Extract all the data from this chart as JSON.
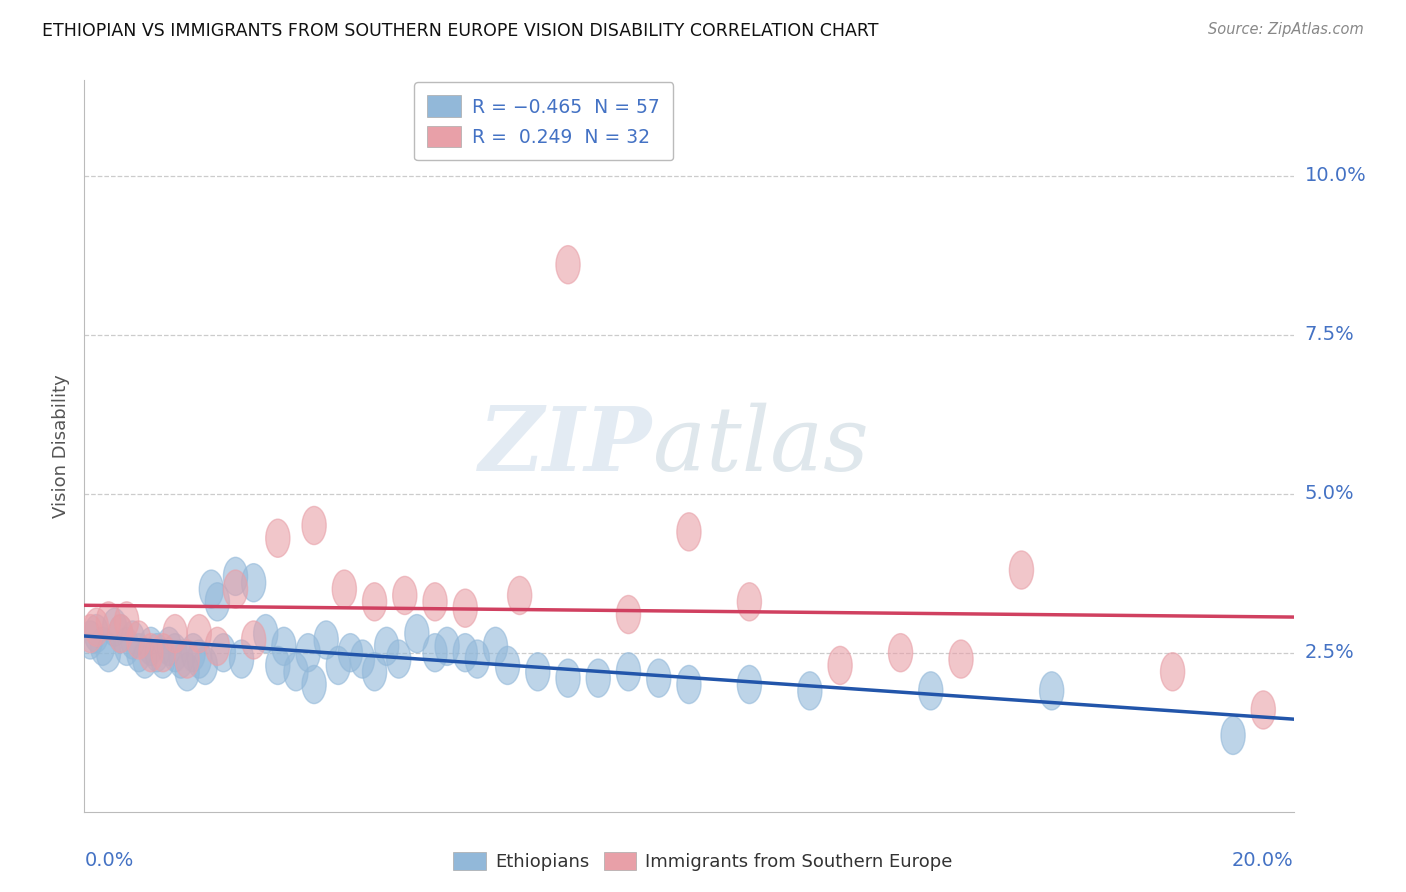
{
  "title": "ETHIOPIAN VS IMMIGRANTS FROM SOUTHERN EUROPE VISION DISABILITY CORRELATION CHART",
  "source": "Source: ZipAtlas.com",
  "ylabel": "Vision Disability",
  "ytick_vals": [
    0.025,
    0.05,
    0.075,
    0.1
  ],
  "ytick_labels": [
    "2.5%",
    "5.0%",
    "7.5%",
    "10.0%"
  ],
  "xlim": [
    0.0,
    0.2
  ],
  "ylim": [
    0.0,
    0.115
  ],
  "blue_color": "#92b8d9",
  "pink_color": "#e8a0a8",
  "blue_line_color": "#2255aa",
  "pink_line_color": "#d04060",
  "tick_color": "#4472c4",
  "ethiopians_x": [
    0.001,
    0.002,
    0.003,
    0.004,
    0.005,
    0.006,
    0.007,
    0.008,
    0.009,
    0.01,
    0.011,
    0.012,
    0.013,
    0.014,
    0.015,
    0.016,
    0.017,
    0.018,
    0.019,
    0.02,
    0.021,
    0.022,
    0.023,
    0.025,
    0.026,
    0.028,
    0.03,
    0.032,
    0.033,
    0.035,
    0.037,
    0.038,
    0.04,
    0.042,
    0.044,
    0.046,
    0.048,
    0.05,
    0.052,
    0.055,
    0.058,
    0.06,
    0.063,
    0.065,
    0.068,
    0.07,
    0.075,
    0.08,
    0.085,
    0.09,
    0.095,
    0.1,
    0.11,
    0.12,
    0.14,
    0.16,
    0.19
  ],
  "ethiopians_y": [
    0.027,
    0.028,
    0.026,
    0.025,
    0.029,
    0.028,
    0.026,
    0.027,
    0.025,
    0.024,
    0.026,
    0.025,
    0.024,
    0.026,
    0.025,
    0.024,
    0.022,
    0.025,
    0.024,
    0.023,
    0.035,
    0.033,
    0.025,
    0.037,
    0.024,
    0.036,
    0.028,
    0.023,
    0.026,
    0.022,
    0.025,
    0.02,
    0.027,
    0.023,
    0.025,
    0.024,
    0.022,
    0.026,
    0.024,
    0.028,
    0.025,
    0.026,
    0.025,
    0.024,
    0.026,
    0.023,
    0.022,
    0.021,
    0.021,
    0.022,
    0.021,
    0.02,
    0.02,
    0.019,
    0.019,
    0.019,
    0.012
  ],
  "southern_europe_x": [
    0.001,
    0.002,
    0.004,
    0.006,
    0.007,
    0.009,
    0.011,
    0.013,
    0.015,
    0.017,
    0.019,
    0.022,
    0.025,
    0.028,
    0.032,
    0.038,
    0.043,
    0.048,
    0.053,
    0.058,
    0.063,
    0.072,
    0.08,
    0.09,
    0.1,
    0.11,
    0.125,
    0.135,
    0.145,
    0.155,
    0.18,
    0.195
  ],
  "southern_europe_y": [
    0.028,
    0.029,
    0.03,
    0.028,
    0.03,
    0.027,
    0.025,
    0.025,
    0.028,
    0.024,
    0.028,
    0.026,
    0.035,
    0.027,
    0.043,
    0.045,
    0.035,
    0.033,
    0.034,
    0.033,
    0.032,
    0.034,
    0.086,
    0.031,
    0.044,
    0.033,
    0.023,
    0.025,
    0.024,
    0.038,
    0.022,
    0.016
  ]
}
